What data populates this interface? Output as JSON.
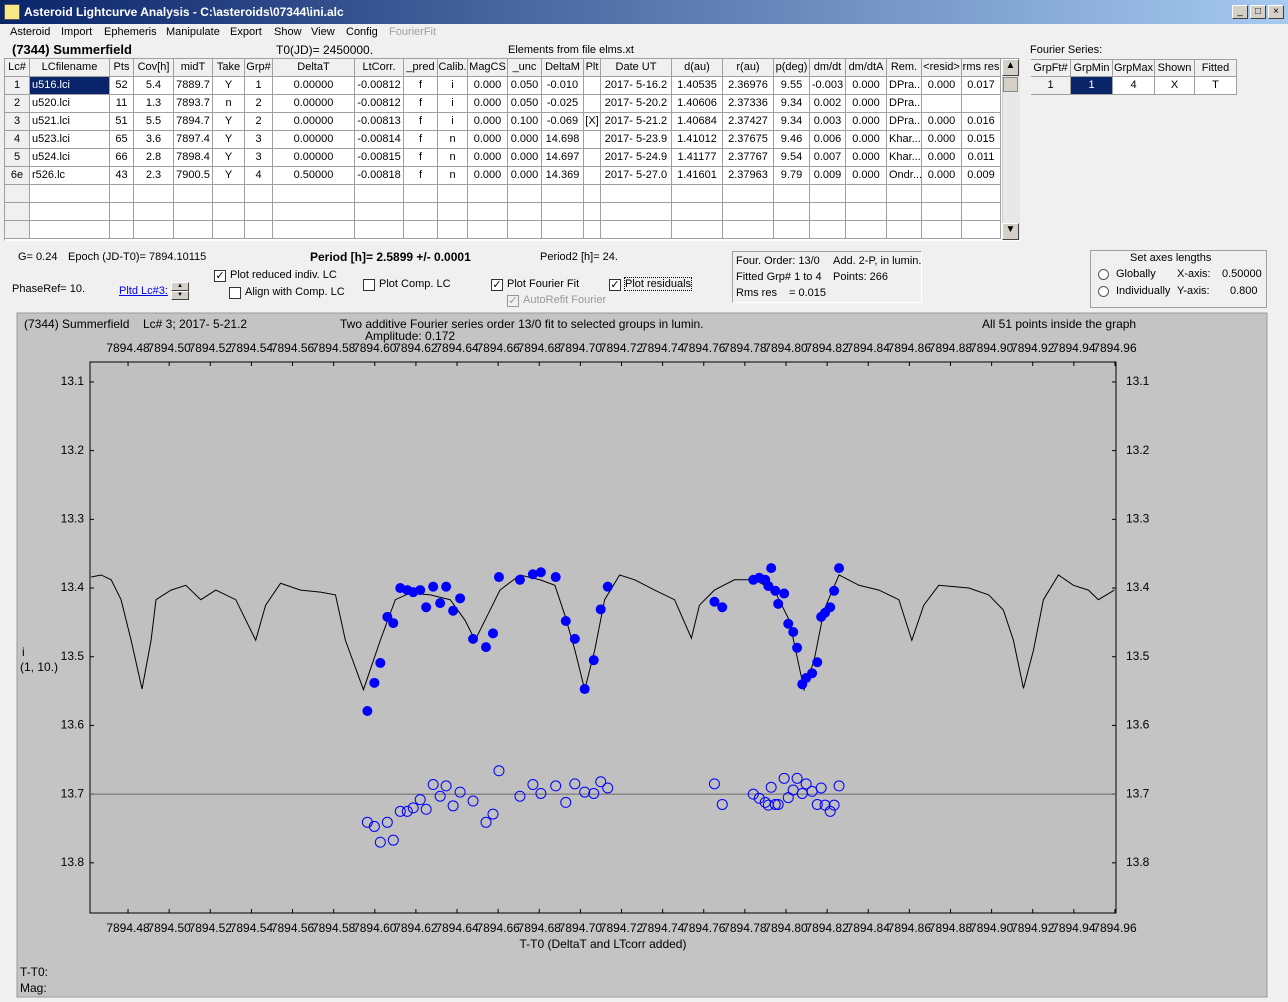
{
  "window": {
    "title": "Asteroid Lightcurve Analysis - C:\\asteroids\\07344\\ini.alc"
  },
  "menu": [
    "Asteroid",
    "Import",
    "Ephemeris",
    "Manipulate",
    "Export",
    "Show",
    "View",
    "Config",
    "FourierFit"
  ],
  "header": {
    "asteroid": "(7344) Summerfield",
    "t0": "T0(JD)= 2450000.",
    "elements": "Elements from file elms.xt",
    "fourier_title": "Fourier Series:"
  },
  "lc_table": {
    "columns": [
      "Lc#",
      "LCfilename",
      "Pts",
      "Cov[h]",
      "midT",
      "Take",
      "Grp#",
      "DeltaT",
      "LtCorr.",
      "_pred",
      "Calib.",
      "MagCS",
      "_unc",
      "DeltaM",
      "Plt",
      "Date UT",
      "d(au)",
      "r(au)",
      "p(deg)",
      "dm/dt",
      "dm/dtA",
      "Rem.",
      "<resid>",
      "rms res"
    ],
    "rows": [
      [
        "1",
        "u516.lci",
        "52",
        "5.4",
        "7889.7",
        "Y",
        "1",
        "0.00000",
        "-0.00812",
        "f",
        "i",
        "0.000",
        "0.050",
        "-0.010",
        null,
        "2017- 5-16.2",
        "1.40535",
        "2.36976",
        "9.55",
        "-0.003",
        "0.000",
        "DPra...",
        "0.000",
        "0.017"
      ],
      [
        "2",
        "u520.lci",
        "11",
        "1.3",
        "7893.7",
        "n",
        "2",
        "0.00000",
        "-0.00812",
        "f",
        "i",
        "0.000",
        "0.050",
        "-0.025",
        null,
        "2017- 5-20.2",
        "1.40606",
        "2.37336",
        "9.34",
        "0.002",
        "0.000",
        "DPra...",
        null,
        null
      ],
      [
        "3",
        "u521.lci",
        "51",
        "5.5",
        "7894.7",
        "Y",
        "2",
        "0.00000",
        "-0.00813",
        "f",
        "i",
        "0.000",
        "0.100",
        "-0.069",
        "[X]",
        "2017- 5-21.2",
        "1.40684",
        "2.37427",
        "9.34",
        "0.003",
        "0.000",
        "DPra...",
        "0.000",
        "0.016"
      ],
      [
        "4",
        "u523.lci",
        "65",
        "3.6",
        "7897.4",
        "Y",
        "3",
        "0.00000",
        "-0.00814",
        "f",
        "n",
        "0.000",
        "0.000",
        "14.698",
        null,
        "2017- 5-23.9",
        "1.41012",
        "2.37675",
        "9.46",
        "0.006",
        "0.000",
        "Khar...",
        "0.000",
        "0.015"
      ],
      [
        "5",
        "u524.lci",
        "66",
        "2.8",
        "7898.4",
        "Y",
        "3",
        "0.00000",
        "-0.00815",
        "f",
        "n",
        "0.000",
        "0.000",
        "14.697",
        null,
        "2017- 5-24.9",
        "1.41177",
        "2.37767",
        "9.54",
        "0.007",
        "0.000",
        "Khar...",
        "0.000",
        "0.011"
      ],
      [
        "6e",
        "r526.lc",
        "43",
        "2.3",
        "7900.5",
        "Y",
        "4",
        "0.50000",
        "-0.00818",
        "f",
        "n",
        "0.000",
        "0.000",
        "14.369",
        null,
        "2017- 5-27.0",
        "1.41601",
        "2.37963",
        "9.79",
        "0.009",
        "0.000",
        "Ondr...",
        "0.000",
        "0.009"
      ]
    ]
  },
  "fourier_table": {
    "columns": [
      "GrpFt#",
      "GrpMin",
      "GrpMax",
      "Shown",
      "Fitted"
    ],
    "rows": [
      [
        "1",
        "1",
        "4",
        "X",
        "T"
      ]
    ]
  },
  "info": {
    "g": "G= 0.24",
    "epoch": "Epoch (JD-T0)= 7894.10115",
    "period": "Period [h]= 2.5899 +/- 0.0001",
    "period2": "Period2 [h]= 24.",
    "phase_ref": "PhaseRef= 10.",
    "plotted_lc": "Pltd Lc#3:"
  },
  "checkboxes": [
    {
      "label": "Plot reduced indiv. LC",
      "checked": true,
      "disabled": false
    },
    {
      "label": "Align with Comp. LC",
      "checked": false,
      "disabled": false
    },
    {
      "label": "Plot Comp. LC",
      "checked": false,
      "disabled": false
    },
    {
      "label": "Plot Fourier Fit",
      "checked": true,
      "disabled": false
    },
    {
      "label": "AutoRefit Fourier",
      "checked": true,
      "disabled": true
    },
    {
      "label": "Plot residuals",
      "checked": true,
      "disabled": false
    }
  ],
  "fit_box": {
    "order": "Four. Order: 13/0",
    "model": "Add. 2-P, in lumin.",
    "groups": "Fitted Grp# 1 to 4",
    "points": "Points: 266",
    "rms_label": "Rms res",
    "rms_value": "= 0.015"
  },
  "axes_box": {
    "title": "Set axes lengths",
    "options": [
      "Globally",
      "Individually"
    ],
    "x_label": "X-axis:",
    "x_value": "0.50000",
    "y_label": "Y-axis:",
    "y_value": "0.800"
  },
  "chart_data": {
    "type": "scatter",
    "object": "(7344) Summerfield",
    "lc_info": "Lc# 3; 2017- 5-21.2",
    "title": "Two additive Fourier series order 13/0 fit to selected groups in lumin.",
    "subtitle": "Amplitude: 0.172",
    "annotation": "All 51 points inside the graph",
    "y_label": [
      "i",
      "(1, 10.)"
    ],
    "x_label": "T-T0 (DeltaT and LTcorr added)",
    "xlim": [
      7894.4615,
      7894.9605
    ],
    "ylim": [
      13.071,
      13.873
    ],
    "y_inverted": true,
    "xticks": [
      7894.48,
      {
        "value": 7894.5,
        "label": "7894.50"
      },
      7894.52,
      7894.54,
      7894.56,
      7894.58,
      {
        "value": 7894.6,
        "label": "7894.60"
      },
      7894.62,
      7894.64,
      7894.66,
      7894.68,
      {
        "value": 7894.7,
        "label": "7894.70"
      },
      7894.72,
      7894.74,
      7894.76,
      7894.78,
      {
        "value": 7894.8,
        "label": "7894.80"
      },
      7894.82,
      7894.84,
      7894.86,
      7894.88,
      {
        "value": 7894.9,
        "label": "7894.90"
      },
      7894.92,
      7894.94,
      7894.96
    ],
    "yticks": [
      13.1,
      13.2,
      13.3,
      13.4,
      13.5,
      13.6,
      13.7,
      13.8
    ],
    "reference_line": 13.7,
    "series": [
      {
        "marker": "line",
        "color": "#000000",
        "x": [
          7894.4621,
          7894.4669,
          7894.4718,
          7894.4766,
          7894.4815,
          7894.4868,
          7894.4912,
          7894.4936,
          7894.5009,
          7894.5081,
          7894.5154,
          7894.5227,
          7894.5324,
          7894.5421,
          7894.5469,
          7894.5542,
          7894.5639,
          7894.5736,
          7894.5809,
          7894.5857,
          7894.5945,
          7894.6027,
          7894.61,
          7894.6173,
          7894.627,
          7894.6367,
          7894.6439,
          7894.6488,
          7894.6536,
          7894.6609,
          7894.6706,
          7894.6803,
          7894.6876,
          7894.6924,
          7894.6973,
          7894.7021,
          7894.707,
          7894.7118,
          7894.7191,
          7894.7264,
          7894.7361,
          7894.7458,
          7894.754,
          7894.7579,
          7894.7652,
          7894.7749,
          7894.7846,
          7894.7943,
          7894.8016,
          7894.8088,
          7894.8137,
          7894.8185,
          7894.8258,
          7894.8355,
          7894.8452,
          7894.8549,
          7894.8612,
          7894.867,
          7894.8743,
          7894.8816,
          7894.8889,
          7894.8986,
          7894.9057,
          7894.9106,
          7894.9155,
          7894.9204,
          7894.9252,
          7894.9325,
          7894.9398,
          7894.9471,
          7894.9519,
          7894.9597
        ],
        "values": [
          13.384,
          13.381,
          13.388,
          13.417,
          13.476,
          13.547,
          13.476,
          13.417,
          13.403,
          13.396,
          13.417,
          13.403,
          13.417,
          13.476,
          13.425,
          13.393,
          13.403,
          13.406,
          13.41,
          13.476,
          13.548,
          13.476,
          13.417,
          13.407,
          13.41,
          13.417,
          13.447,
          13.476,
          13.447,
          13.403,
          13.381,
          13.388,
          13.396,
          13.439,
          13.49,
          13.548,
          13.49,
          13.417,
          13.381,
          13.388,
          13.403,
          13.417,
          13.473,
          13.425,
          13.403,
          13.388,
          13.388,
          13.403,
          13.447,
          13.548,
          13.505,
          13.432,
          13.381,
          13.396,
          13.403,
          13.417,
          13.476,
          13.425,
          13.396,
          13.398,
          13.4,
          13.41,
          13.432,
          13.476,
          13.546,
          13.49,
          13.417,
          13.381,
          13.396,
          13.403,
          13.417,
          13.403
        ]
      },
      {
        "marker": "filled",
        "color": "#0000ff",
        "x": [
          7894.5964,
          7894.5998,
          7894.6027,
          7894.6061,
          7894.609,
          7894.6124,
          7894.6158,
          7894.6187,
          7894.6221,
          7894.625,
          7894.6284,
          7894.6318,
          7894.6347,
          7894.6381,
          7894.6415,
          7894.6478,
          7894.6541,
          7894.6575,
          7894.6604,
          7894.6706,
          7894.6769,
          7894.6808,
          7894.688,
          7894.6929,
          7894.6973,
          7894.7021,
          7894.7065,
          7894.7099,
          7894.7133,
          7894.7652,
          7894.769,
          7894.7841,
          7894.787,
          7894.7899,
          7894.7928,
          7894.7914,
          7894.7948,
          7894.7962,
          7894.7991,
          7894.8011,
          7894.8035,
          7894.8054,
          7894.8079,
          7894.8098,
          7894.8127,
          7894.8152,
          7894.8171,
          7894.819,
          7894.8215,
          7894.8234,
          7894.8258
        ],
        "values": [
          13.579,
          13.538,
          13.509,
          13.442,
          13.451,
          13.4,
          13.403,
          13.406,
          13.403,
          13.428,
          13.398,
          13.422,
          13.398,
          13.433,
          13.415,
          13.474,
          13.486,
          13.466,
          13.384,
          13.388,
          13.38,
          13.377,
          13.384,
          13.448,
          13.474,
          13.547,
          13.505,
          13.431,
          13.398,
          13.42,
          13.428,
          13.388,
          13.385,
          13.388,
          13.371,
          13.397,
          13.404,
          13.423,
          13.408,
          13.452,
          13.464,
          13.487,
          13.54,
          13.531,
          13.524,
          13.508,
          13.442,
          13.436,
          13.428,
          13.404,
          13.371
        ]
      },
      {
        "marker": "open",
        "color": "#0000ff",
        "x": [
          7894.5964,
          7894.5998,
          7894.6027,
          7894.6061,
          7894.609,
          7894.6124,
          7894.6158,
          7894.6187,
          7894.6221,
          7894.625,
          7894.6284,
          7894.6318,
          7894.6347,
          7894.6381,
          7894.6415,
          7894.6478,
          7894.6541,
          7894.6575,
          7894.6604,
          7894.6706,
          7894.6769,
          7894.6808,
          7894.688,
          7894.6929,
          7894.6973,
          7894.7021,
          7894.7065,
          7894.7099,
          7894.7133,
          7894.7652,
          7894.769,
          7894.7841,
          7894.787,
          7894.7899,
          7894.7928,
          7894.7914,
          7894.7948,
          7894.7962,
          7894.7991,
          7894.8011,
          7894.8035,
          7894.8054,
          7894.8079,
          7894.8098,
          7894.8127,
          7894.8152,
          7894.8171,
          7894.819,
          7894.8215,
          7894.8234,
          7894.8258
        ],
        "values": [
          13.741,
          13.747,
          13.77,
          13.741,
          13.767,
          13.725,
          13.725,
          13.72,
          13.708,
          13.722,
          13.686,
          13.703,
          13.688,
          13.717,
          13.697,
          13.71,
          13.741,
          13.729,
          13.666,
          13.703,
          13.686,
          13.699,
          13.688,
          13.712,
          13.685,
          13.697,
          13.699,
          13.682,
          13.691,
          13.685,
          13.715,
          13.7,
          13.706,
          13.712,
          13.69,
          13.716,
          13.715,
          13.715,
          13.677,
          13.705,
          13.694,
          13.677,
          13.699,
          13.685,
          13.696,
          13.715,
          13.691,
          13.716,
          13.725,
          13.716,
          13.688
        ]
      }
    ]
  },
  "status": {
    "x": "T-T0:",
    "mag": "Mag:"
  }
}
